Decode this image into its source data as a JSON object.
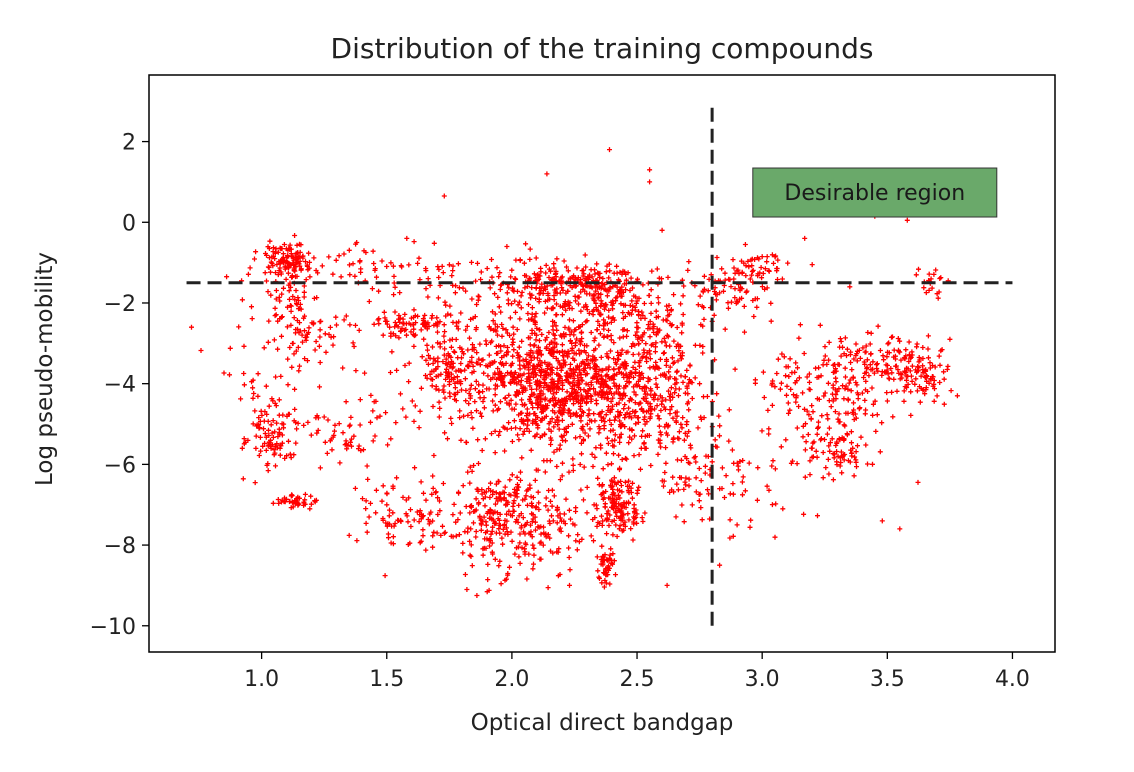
{
  "chart_data": {
    "type": "scatter",
    "title": "Distribution of the training compounds",
    "xlabel": "Optical direct bandgap",
    "ylabel": "Log pseudo-mobility",
    "xlim": [
      0.55,
      4.17
    ],
    "ylim": [
      -10.65,
      3.65
    ],
    "xticks": [
      1.0,
      1.5,
      2.0,
      2.5,
      3.0,
      3.5,
      4.0
    ],
    "xtick_labels": [
      "1.0",
      "1.5",
      "2.0",
      "2.5",
      "3.0",
      "3.5",
      "4.0"
    ],
    "yticks": [
      2,
      0,
      -2,
      -4,
      -6,
      -8,
      -10
    ],
    "ytick_labels": [
      "2",
      "0",
      "−2",
      "−4",
      "−6",
      "−8",
      "−10"
    ],
    "grid": false,
    "marker": "+",
    "point_color": "#ff0000",
    "threshold_lines": [
      {
        "orientation": "horizontal",
        "y": -1.5,
        "x_range": [
          0.7,
          4.0
        ],
        "style": "dashed",
        "color": "#222222"
      },
      {
        "orientation": "vertical",
        "x": 2.8,
        "y_range": [
          -10.0,
          3.0
        ],
        "style": "dashed",
        "color": "#222222"
      }
    ],
    "annotation": {
      "text": "Desirable region",
      "x": 3.45,
      "y": 0.75,
      "box_color": "#6aa96a"
    },
    "clusters": [
      {
        "cx": 2.22,
        "cy": -3.9,
        "sx": 0.2,
        "sy": 0.95,
        "n": 1200
      },
      {
        "cx": 2.2,
        "cy": -1.55,
        "sx": 0.16,
        "sy": 0.3,
        "n": 230
      },
      {
        "cx": 2.42,
        "cy": -1.75,
        "sx": 0.1,
        "sy": 0.35,
        "n": 90
      },
      {
        "cx": 1.75,
        "cy": -3.6,
        "sx": 0.07,
        "sy": 0.45,
        "n": 120
      },
      {
        "cx": 1.6,
        "cy": -2.55,
        "sx": 0.12,
        "sy": 0.18,
        "n": 90
      },
      {
        "cx": 1.95,
        "cy": -7.3,
        "sx": 0.09,
        "sy": 0.7,
        "n": 220
      },
      {
        "cx": 2.15,
        "cy": -7.6,
        "sx": 0.09,
        "sy": 0.5,
        "n": 90
      },
      {
        "cx": 2.42,
        "cy": -7.05,
        "sx": 0.05,
        "sy": 0.4,
        "n": 150
      },
      {
        "cx": 2.38,
        "cy": -8.5,
        "sx": 0.02,
        "sy": 0.25,
        "n": 45
      },
      {
        "cx": 1.1,
        "cy": -0.95,
        "sx": 0.05,
        "sy": 0.2,
        "n": 110
      },
      {
        "cx": 1.12,
        "cy": -1.8,
        "sx": 0.04,
        "sy": 0.4,
        "n": 45
      },
      {
        "cx": 1.05,
        "cy": -5.3,
        "sx": 0.05,
        "sy": 0.45,
        "n": 95
      },
      {
        "cx": 1.14,
        "cy": -6.9,
        "sx": 0.04,
        "sy": 0.08,
        "n": 40
      },
      {
        "cx": 1.18,
        "cy": -2.8,
        "sx": 0.08,
        "sy": 0.4,
        "n": 60
      },
      {
        "cx": 1.3,
        "cy": -5.3,
        "sx": 0.07,
        "sy": 0.35,
        "n": 40
      },
      {
        "cx": 1.65,
        "cy": -7.4,
        "sx": 0.12,
        "sy": 0.5,
        "n": 70
      },
      {
        "cx": 1.5,
        "cy": -7.2,
        "sx": 0.1,
        "sy": 0.5,
        "n": 40
      },
      {
        "cx": 2.55,
        "cy": -4.5,
        "sx": 0.12,
        "sy": 0.9,
        "n": 180
      },
      {
        "cx": 2.62,
        "cy": -2.6,
        "sx": 0.1,
        "sy": 0.5,
        "n": 70
      },
      {
        "cx": 2.72,
        "cy": -6.1,
        "sx": 0.08,
        "sy": 0.6,
        "n": 60
      },
      {
        "cx": 2.85,
        "cy": -1.65,
        "sx": 0.1,
        "sy": 0.35,
        "n": 70
      },
      {
        "cx": 3.0,
        "cy": -1.1,
        "sx": 0.06,
        "sy": 0.2,
        "n": 40
      },
      {
        "cx": 3.3,
        "cy": -4.2,
        "sx": 0.12,
        "sy": 0.8,
        "n": 150
      },
      {
        "cx": 3.5,
        "cy": -3.6,
        "sx": 0.1,
        "sy": 0.4,
        "n": 120
      },
      {
        "cx": 3.65,
        "cy": -3.7,
        "sx": 0.05,
        "sy": 0.35,
        "n": 60
      },
      {
        "cx": 3.3,
        "cy": -5.7,
        "sx": 0.06,
        "sy": 0.3,
        "n": 60
      },
      {
        "cx": 2.95,
        "cy": -6.2,
        "sx": 0.12,
        "sy": 0.8,
        "n": 50
      },
      {
        "cx": 3.68,
        "cy": -1.5,
        "sx": 0.03,
        "sy": 0.25,
        "n": 20
      },
      {
        "cx": 1.4,
        "cy": -1.1,
        "sx": 0.2,
        "sy": 0.3,
        "n": 50
      },
      {
        "cx": 1.8,
        "cy": -1.5,
        "sx": 0.25,
        "sy": 0.4,
        "n": 60
      },
      {
        "cx": 1.0,
        "cy": -3.5,
        "sx": 0.12,
        "sy": 0.8,
        "n": 30
      },
      {
        "cx": 1.45,
        "cy": -4.5,
        "sx": 0.1,
        "sy": 0.8,
        "n": 30
      },
      {
        "cx": 3.15,
        "cy": -4.0,
        "sx": 0.1,
        "sy": 0.5,
        "n": 40
      }
    ],
    "outliers": [
      [
        2.39,
        1.8
      ],
      [
        2.55,
        1.3
      ],
      [
        2.55,
        1.0
      ],
      [
        2.14,
        1.2
      ],
      [
        1.73,
        0.65
      ],
      [
        3.45,
        0.15
      ],
      [
        3.58,
        0.05
      ],
      [
        3.48,
        -7.4
      ],
      [
        3.55,
        -7.6
      ],
      [
        0.72,
        -2.6
      ],
      [
        0.86,
        -1.35
      ],
      [
        0.92,
        -1.45
      ],
      [
        3.78,
        -4.3
      ],
      [
        3.75,
        -2.9
      ],
      [
        3.2,
        -1.05
      ],
      [
        3.35,
        -1.6
      ],
      [
        3.17,
        -0.4
      ],
      [
        3.02,
        -0.85
      ],
      [
        2.62,
        -9.0
      ],
      [
        2.83,
        -8.5
      ],
      [
        1.82,
        -9.1
      ],
      [
        1.86,
        -9.25
      ],
      [
        2.23,
        -9.0
      ],
      [
        2.9,
        -7.5
      ],
      [
        2.75,
        -4.0
      ],
      [
        1.38,
        -0.5
      ],
      [
        1.58,
        -0.4
      ],
      [
        2.6,
        -0.2
      ],
      [
        1.98,
        -0.6
      ],
      [
        0.96,
        -3.95
      ]
    ]
  }
}
